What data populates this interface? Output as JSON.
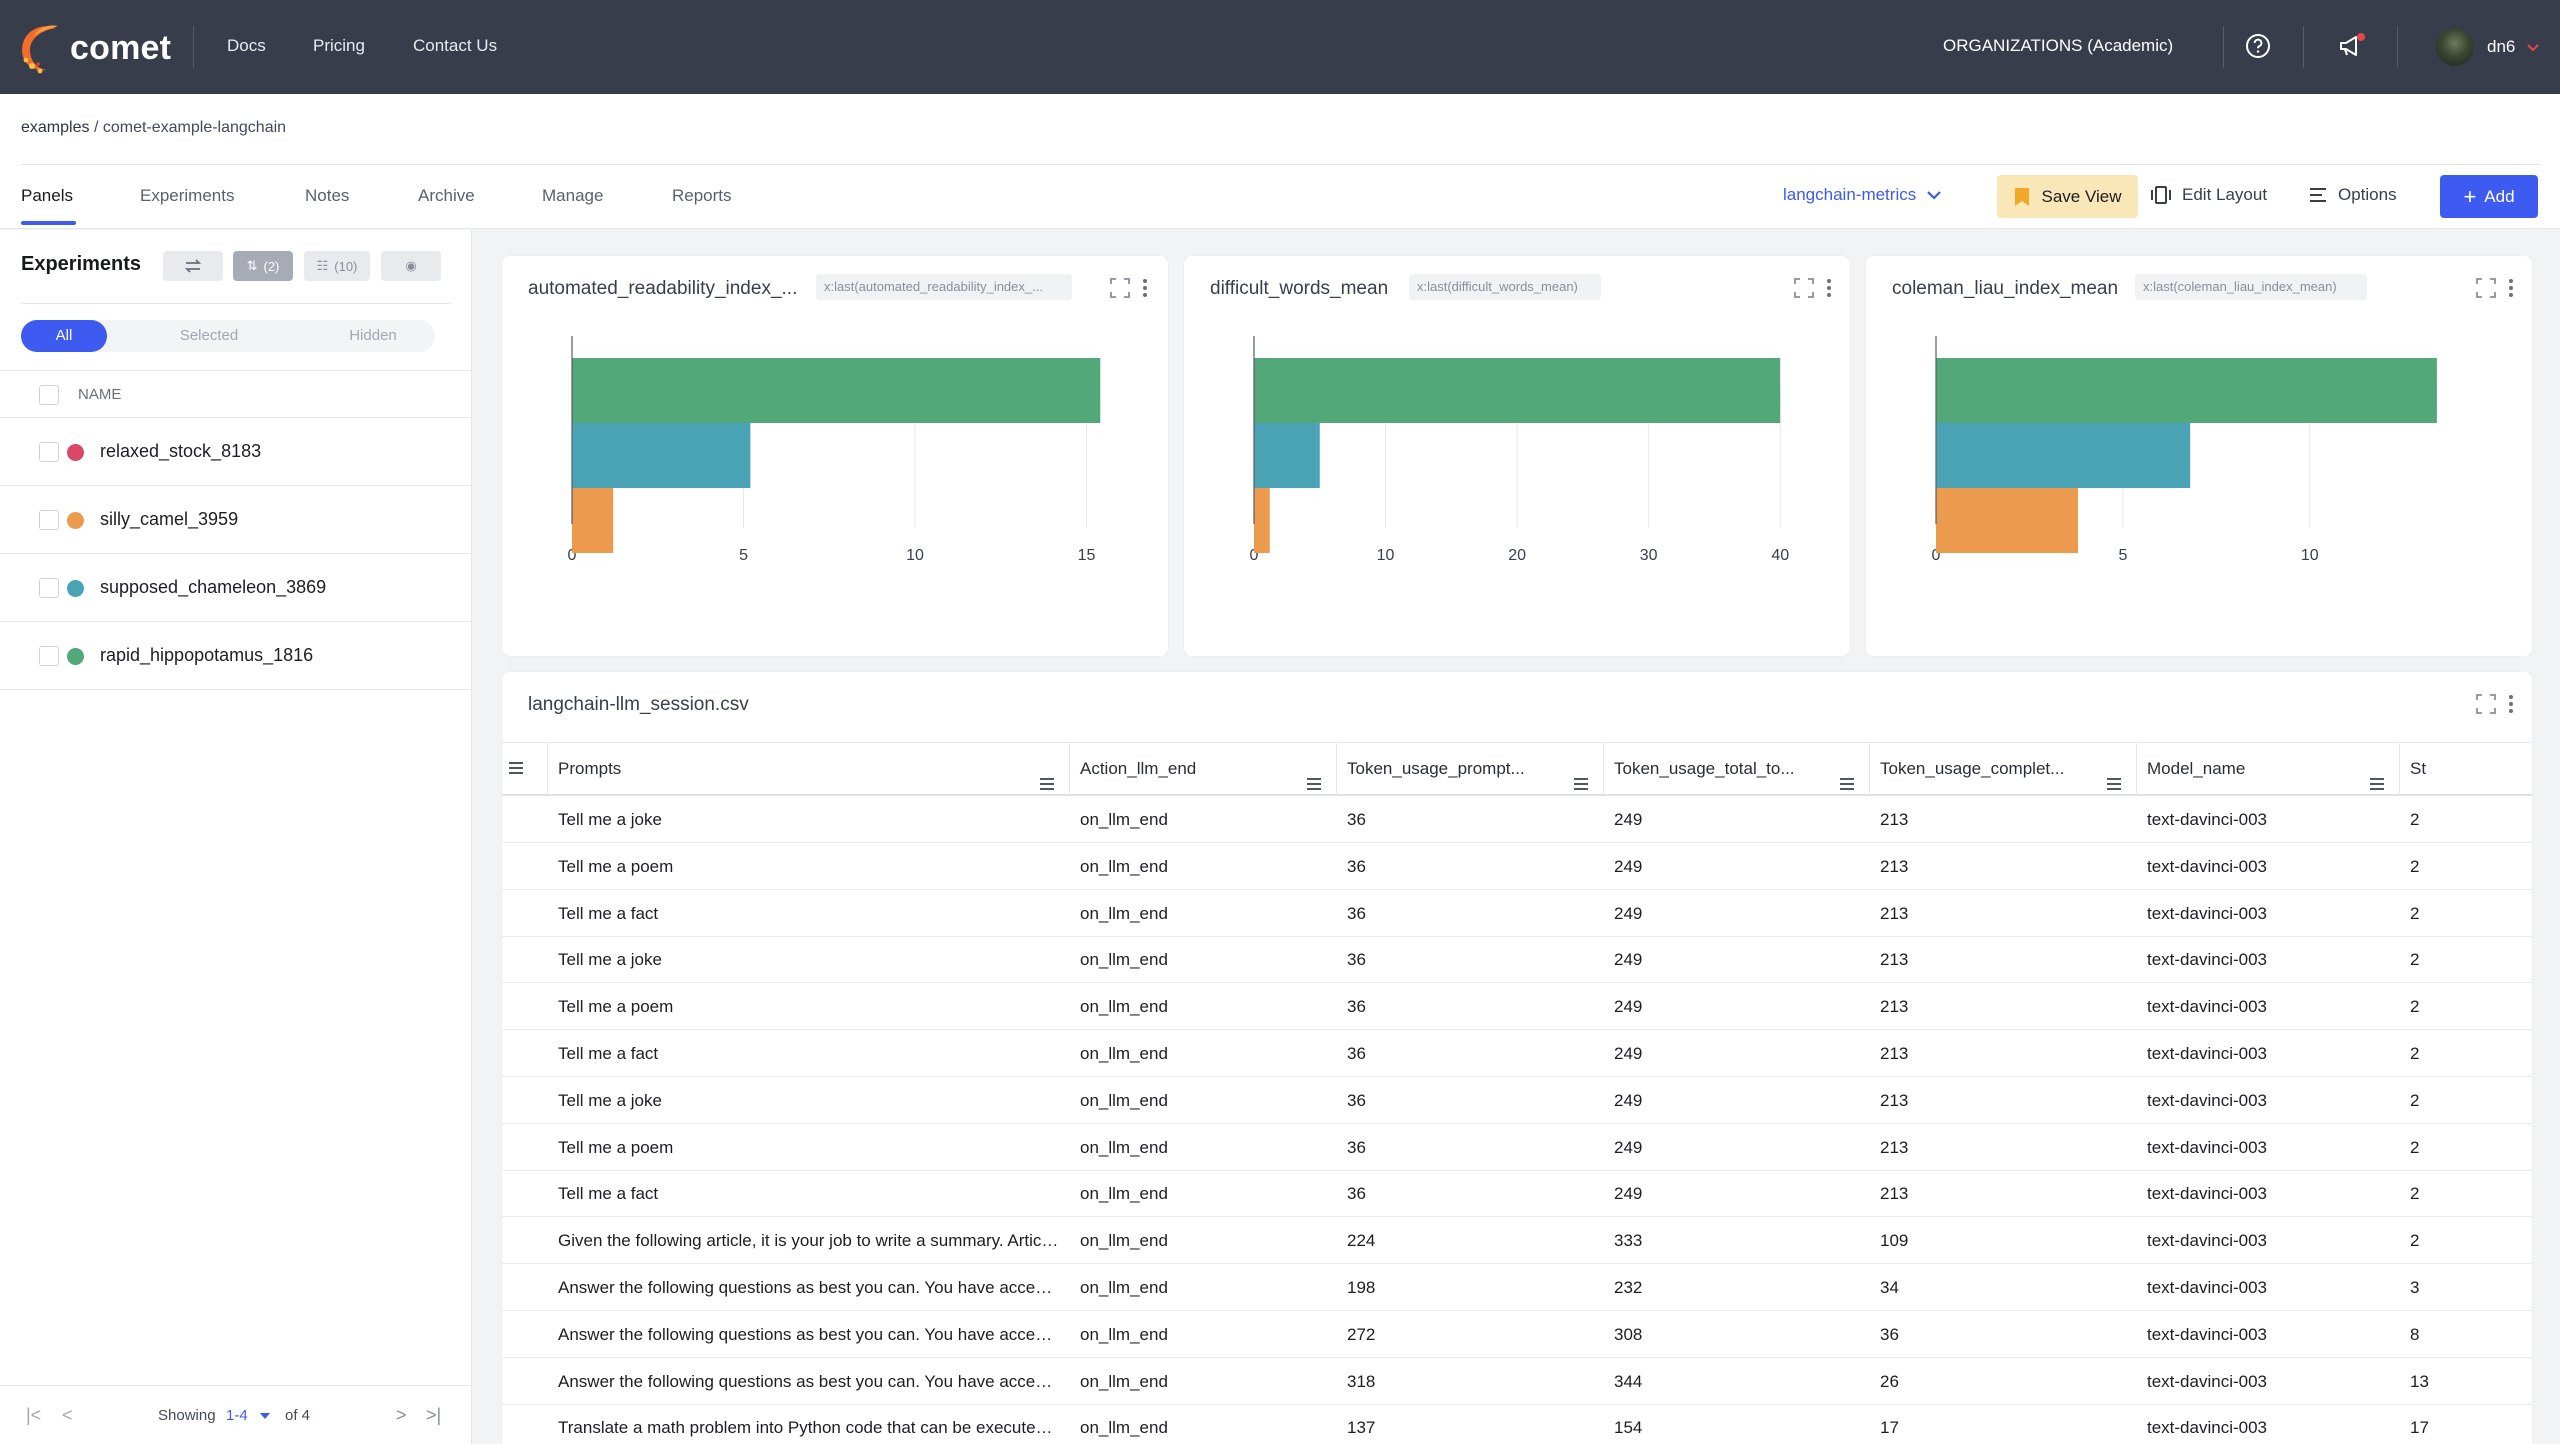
{
  "brand": {
    "name": "comet"
  },
  "topnav": {
    "docs": "Docs",
    "pricing": "Pricing",
    "contact": "Contact Us",
    "org": "ORGANIZATIONS (Academic)",
    "user": "dn6"
  },
  "breadcrumb": {
    "workspace": "examples",
    "separator": "/",
    "project": "comet-example-langchain"
  },
  "tabs": [
    "Panels",
    "Experiments",
    "Notes",
    "Archive",
    "Manage",
    "Reports"
  ],
  "toolbar": {
    "view": "langchain-metrics",
    "save_view": "Save View",
    "edit_layout": "Edit Layout",
    "options": "Options",
    "add": "Add"
  },
  "sidebar": {
    "title": "Experiments",
    "group_count": "(2)",
    "column_count": "(10)",
    "filters": [
      "All",
      "Selected",
      "Hidden"
    ],
    "column_name": "NAME",
    "experiments": [
      {
        "name": "relaxed_stock_8183",
        "color": "#d9486b"
      },
      {
        "name": "silly_camel_3959",
        "color": "#ec9a4e"
      },
      {
        "name": "supposed_chameleon_3869",
        "color": "#4ba3b6"
      },
      {
        "name": "rapid_hippopotamus_1816",
        "color": "#52a879"
      }
    ],
    "pager": {
      "showing": "Showing",
      "range": "1-4",
      "of": "of 4"
    }
  },
  "panels": [
    {
      "title": "automated_readability_index_...",
      "badge": "x:last(automated_readability_index_..."
    },
    {
      "title": "difficult_words_mean",
      "badge": "x:last(difficult_words_mean)"
    },
    {
      "title": "coleman_liau_index_mean",
      "badge": "x:last(coleman_liau_index_mean)"
    }
  ],
  "chart_data": [
    {
      "type": "bar",
      "orientation": "horizontal",
      "title": "automated_readability_index_...",
      "xlim": [
        0,
        15.8
      ],
      "xticks": [
        "0",
        "5",
        "10",
        "15"
      ],
      "series": [
        {
          "color": "#52a879",
          "value": 15.4
        },
        {
          "color": "#4ba3b6",
          "value": 5.2
        },
        {
          "color": "#ec9a4e",
          "value": 1.2
        }
      ]
    },
    {
      "type": "bar",
      "orientation": "horizontal",
      "title": "difficult_words_mean",
      "xlim": [
        0,
        41.2
      ],
      "xticks": [
        "0",
        "10",
        "20",
        "30",
        "40"
      ],
      "series": [
        {
          "color": "#52a879",
          "value": 40
        },
        {
          "color": "#4ba3b6",
          "value": 5
        },
        {
          "color": "#ec9a4e",
          "value": 1.2
        }
      ]
    },
    {
      "type": "bar",
      "orientation": "horizontal",
      "title": "coleman_liau_index_mean",
      "xlim": [
        0,
        14.5
      ],
      "xticks": [
        "0",
        "5",
        "10"
      ],
      "series": [
        {
          "color": "#52a879",
          "value": 13.4
        },
        {
          "color": "#4ba3b6",
          "value": 6.8
        },
        {
          "color": "#ec9a4e",
          "value": 3.8
        }
      ]
    }
  ],
  "table": {
    "title": "langchain-llm_session.csv",
    "columns": [
      "Prompts",
      "Action_llm_end",
      "Token_usage_prompt...",
      "Token_usage_total_to...",
      "Token_usage_complet...",
      "Model_name",
      "St"
    ],
    "rows": [
      [
        "Tell me a joke",
        "on_llm_end",
        "36",
        "249",
        "213",
        "text-davinci-003",
        "2"
      ],
      [
        "Tell me a poem",
        "on_llm_end",
        "36",
        "249",
        "213",
        "text-davinci-003",
        "2"
      ],
      [
        "Tell me a fact",
        "on_llm_end",
        "36",
        "249",
        "213",
        "text-davinci-003",
        "2"
      ],
      [
        "Tell me a joke",
        "on_llm_end",
        "36",
        "249",
        "213",
        "text-davinci-003",
        "2"
      ],
      [
        "Tell me a poem",
        "on_llm_end",
        "36",
        "249",
        "213",
        "text-davinci-003",
        "2"
      ],
      [
        "Tell me a fact",
        "on_llm_end",
        "36",
        "249",
        "213",
        "text-davinci-003",
        "2"
      ],
      [
        "Tell me a joke",
        "on_llm_end",
        "36",
        "249",
        "213",
        "text-davinci-003",
        "2"
      ],
      [
        "Tell me a poem",
        "on_llm_end",
        "36",
        "249",
        "213",
        "text-davinci-003",
        "2"
      ],
      [
        "Tell me a fact",
        "on_llm_end",
        "36",
        "249",
        "213",
        "text-davinci-003",
        "2"
      ],
      [
        "Given the following article, it is your job to write a summary. Article:...",
        "on_llm_end",
        "224",
        "333",
        "109",
        "text-davinci-003",
        "2"
      ],
      [
        "Answer the following questions as best you can. You have access t...",
        "on_llm_end",
        "198",
        "232",
        "34",
        "text-davinci-003",
        "3"
      ],
      [
        "Answer the following questions as best you can. You have access t...",
        "on_llm_end",
        "272",
        "308",
        "36",
        "text-davinci-003",
        "8"
      ],
      [
        "Answer the following questions as best you can. You have access t...",
        "on_llm_end",
        "318",
        "344",
        "26",
        "text-davinci-003",
        "13"
      ],
      [
        "Translate a math problem into Python code that can be executed in...",
        "on_llm_end",
        "137",
        "154",
        "17",
        "text-davinci-003",
        "17"
      ]
    ]
  }
}
